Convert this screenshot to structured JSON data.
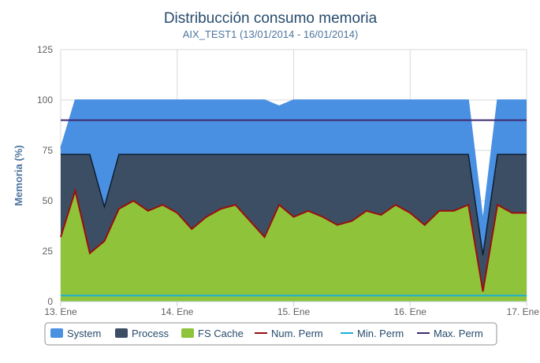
{
  "chart_data": {
    "type": "area",
    "title": "Distribucción consumo memoria",
    "subtitle": "AIX_TEST1 (13/01/2014 - 16/01/2014)",
    "xlabel": "",
    "ylabel": "Memoria (%)",
    "x_ticks": [
      "13. Ene",
      "14. Ene",
      "15. Ene",
      "16. Ene",
      "17. Ene"
    ],
    "y_ticks": [
      "0",
      "25",
      "50",
      "75",
      "100",
      "125"
    ],
    "ylim": [
      0,
      125
    ],
    "x": [
      "13/01 00:00",
      "13/01 03:00",
      "13/01 06:00",
      "13/01 09:00",
      "13/01 12:00",
      "13/01 15:00",
      "13/01 18:00",
      "13/01 21:00",
      "14/01 00:00",
      "14/01 03:00",
      "14/01 06:00",
      "14/01 09:00",
      "14/01 12:00",
      "14/01 15:00",
      "14/01 18:00",
      "14/01 21:00",
      "15/01 00:00",
      "15/01 03:00",
      "15/01 06:00",
      "15/01 09:00",
      "15/01 12:00",
      "15/01 15:00",
      "15/01 18:00",
      "15/01 21:00",
      "16/01 00:00",
      "16/01 03:00",
      "16/01 06:00",
      "16/01 09:00",
      "16/01 12:00",
      "16/01 15:00",
      "16/01 18:00",
      "16/01 21:00",
      "17/01 00:00"
    ],
    "grid": true,
    "legend_position": "bottom",
    "series": [
      {
        "name": "System",
        "kind": "area",
        "color": "#4a90e2",
        "values": [
          76,
          100,
          100,
          100,
          100,
          100,
          100,
          100,
          100,
          100,
          100,
          100,
          100,
          100,
          100,
          97,
          100,
          100,
          100,
          100,
          100,
          100,
          100,
          100,
          100,
          100,
          100,
          100,
          100,
          40,
          100,
          100,
          100
        ]
      },
      {
        "name": "Process",
        "kind": "area",
        "color": "#3c4e64",
        "values": [
          73,
          73,
          73,
          47,
          73,
          73,
          73,
          73,
          73,
          73,
          73,
          73,
          73,
          73,
          73,
          73,
          73,
          73,
          73,
          73,
          73,
          73,
          73,
          73,
          73,
          73,
          73,
          73,
          73,
          23,
          73,
          73,
          73
        ]
      },
      {
        "name": "FS Cache",
        "kind": "area",
        "color": "#8fc33a",
        "values": [
          32,
          55,
          24,
          30,
          46,
          50,
          45,
          48,
          44,
          36,
          42,
          46,
          48,
          40,
          32,
          48,
          42,
          45,
          42,
          38,
          40,
          45,
          43,
          48,
          44,
          38,
          45,
          45,
          48,
          5,
          48,
          44,
          44
        ]
      },
      {
        "name": "Num. Perm",
        "kind": "line",
        "color": "#9a0e0e",
        "values": [
          32,
          55,
          24,
          30,
          46,
          50,
          45,
          48,
          44,
          36,
          42,
          46,
          48,
          40,
          32,
          48,
          42,
          45,
          42,
          38,
          40,
          45,
          43,
          48,
          44,
          38,
          45,
          45,
          48,
          5,
          48,
          44,
          44
        ]
      },
      {
        "name": "Min. Perm",
        "kind": "line",
        "color": "#1ab0d8",
        "values": [
          3,
          3,
          3,
          3,
          3,
          3,
          3,
          3,
          3,
          3,
          3,
          3,
          3,
          3,
          3,
          3,
          3,
          3,
          3,
          3,
          3,
          3,
          3,
          3,
          3,
          3,
          3,
          3,
          3,
          3,
          3,
          3,
          3
        ]
      },
      {
        "name": "Max. Perm",
        "kind": "line",
        "color": "#3d2a6e",
        "values": [
          90,
          90,
          90,
          90,
          90,
          90,
          90,
          90,
          90,
          90,
          90,
          90,
          90,
          90,
          90,
          90,
          90,
          90,
          90,
          90,
          90,
          90,
          90,
          90,
          90,
          90,
          90,
          90,
          90,
          90,
          90,
          90,
          90
        ]
      }
    ]
  }
}
